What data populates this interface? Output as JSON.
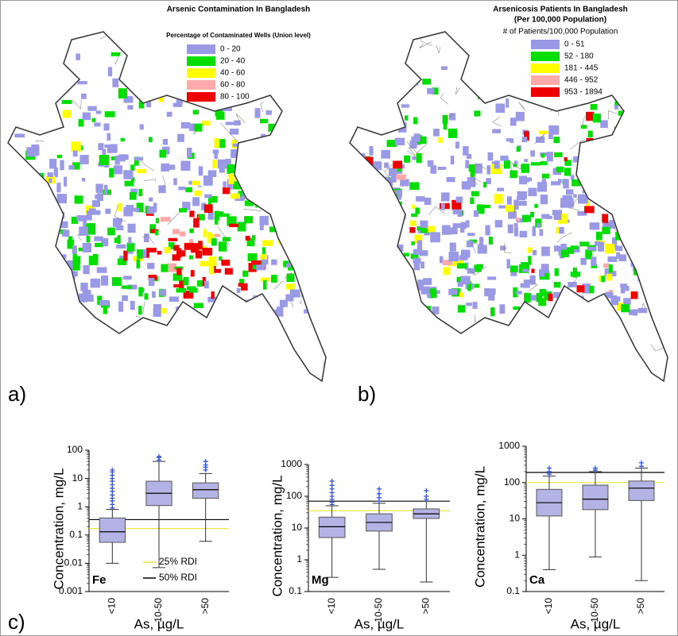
{
  "maps": [
    {
      "panel": "a)",
      "title": "Arsenic Contamination In Bangladesh",
      "subtitle": "Percentage of Contaminated Wells (Union level)",
      "legend": [
        {
          "label": "0 - 20",
          "color": "#9999e6"
        },
        {
          "label": "20 - 40",
          "color": "#00dd00"
        },
        {
          "label": "40 - 60",
          "color": "#ffff00"
        },
        {
          "label": "60 - 80",
          "color": "#ffaaaa"
        },
        {
          "label": "80 - 100",
          "color": "#ee0000"
        }
      ]
    },
    {
      "panel": "b)",
      "title": "Arsenicosis Patients In Bangladesh",
      "subtitle": "(Per 100,000 Population)",
      "legend_title": "# of Patients/100,000 Population",
      "legend": [
        {
          "label": "0 - 51",
          "color": "#9999e6"
        },
        {
          "label": "52 - 180",
          "color": "#00dd00"
        },
        {
          "label": "181 - 445",
          "color": "#ffff00"
        },
        {
          "label": "446 - 952",
          "color": "#ffaaaa"
        },
        {
          "label": "953 - 1894",
          "color": "#ee0000"
        }
      ]
    }
  ],
  "panel_c": "c)",
  "chart_data": [
    {
      "type": "box",
      "ylabel": "Concentration, mg/L",
      "xlabel": "As, µg/L",
      "element": "Fe",
      "log_y": true,
      "ylim": [
        0.001,
        100
      ],
      "yticks": [
        0.001,
        0.01,
        0.1,
        1,
        10,
        100
      ],
      "categories": [
        "<10",
        "10-50",
        ">50"
      ],
      "color": "#b3b3e6",
      "boxes": [
        {
          "min": 0.01,
          "q1": 0.055,
          "median": 0.13,
          "q3": 0.4,
          "max": 0.8,
          "outliers": [
            0.9,
            1.2,
            1.6,
            2,
            2.6,
            3.5,
            4.5,
            6,
            8,
            10,
            13,
            17,
            20
          ]
        },
        {
          "min": 0.007,
          "q1": 1.1,
          "median": 3,
          "q3": 8,
          "max": 40,
          "outliers": [
            45,
            55,
            60
          ]
        },
        {
          "min": 0.06,
          "q1": 2,
          "median": 4,
          "q3": 7,
          "max": 15,
          "outliers": [
            20,
            25,
            30,
            40
          ]
        }
      ],
      "ref_lines": [
        {
          "name": "25% RDI",
          "value": 0.17,
          "color": "#e8e840"
        },
        {
          "name": "50% RDI",
          "value": 0.35,
          "color": "#000000"
        }
      ]
    },
    {
      "type": "box",
      "ylabel": "Concentration, mg/L",
      "xlabel": "As, µg/L",
      "element": "Mg",
      "log_y": true,
      "ylim": [
        0.1,
        1000
      ],
      "yticks": [
        0.1,
        1,
        10,
        100,
        1000
      ],
      "categories": [
        "<10",
        "10-50",
        ">50"
      ],
      "color": "#b3b3e6",
      "boxes": [
        {
          "min": 0.28,
          "q1": 5,
          "median": 11,
          "q3": 22,
          "max": 50,
          "outliers": [
            55,
            65,
            80,
            100,
            130,
            170,
            220,
            300
          ]
        },
        {
          "min": 0.5,
          "q1": 8,
          "median": 15,
          "q3": 28,
          "max": 60,
          "outliers": [
            70,
            90,
            120,
            170
          ]
        },
        {
          "min": 0.2,
          "q1": 20,
          "median": 28,
          "q3": 40,
          "max": 70,
          "outliers": [
            80,
            100,
            150
          ]
        }
      ],
      "ref_lines": [
        {
          "value": 35,
          "color": "#e8e840"
        },
        {
          "value": 70,
          "color": "#000000"
        }
      ]
    },
    {
      "type": "box",
      "ylabel": "Concentration, mg/L",
      "xlabel": "As, µg/L",
      "element": "Ca",
      "log_y": true,
      "ylim": [
        0.1,
        1000
      ],
      "yticks": [
        0.1,
        1,
        10,
        100,
        1000
      ],
      "categories": [
        "<10",
        "10-50",
        ">50"
      ],
      "color": "#b3b3e6",
      "boxes": [
        {
          "min": 0.4,
          "q1": 12,
          "median": 28,
          "q3": 65,
          "max": 150,
          "outliers": [
            170,
            200,
            250
          ]
        },
        {
          "min": 0.9,
          "q1": 18,
          "median": 35,
          "q3": 85,
          "max": 200,
          "outliers": [
            220,
            250
          ]
        },
        {
          "min": 0.2,
          "q1": 32,
          "median": 70,
          "q3": 110,
          "max": 250,
          "outliers": [
            280,
            350
          ]
        }
      ],
      "ref_lines": [
        {
          "value": 100,
          "color": "#e8e840"
        },
        {
          "value": 190,
          "color": "#000000"
        }
      ]
    }
  ]
}
